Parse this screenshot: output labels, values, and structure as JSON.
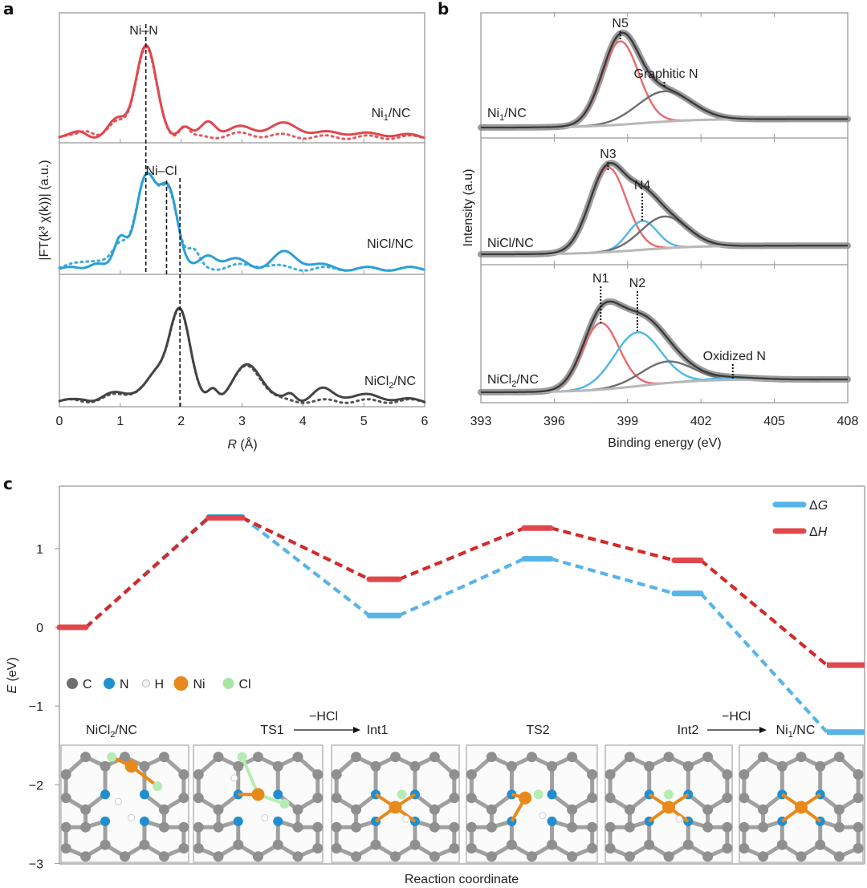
{
  "figure": {
    "panel_labels": [
      "a",
      "b",
      "c"
    ]
  },
  "chart_data": [
    {
      "id": "a",
      "type": "line",
      "title": "",
      "xlabel_italic": "R",
      "xlabel_rest": " (Å)",
      "ylabel": "|FT(k³ χ(k))| (a.u.)",
      "xlim": [
        0,
        6
      ],
      "xticks": [
        "0",
        "1",
        "2",
        "3",
        "4",
        "5",
        "6"
      ],
      "grid": false,
      "line_style": {
        "solid": "experiment",
        "dotted": "fit"
      },
      "subplots": [
        {
          "name": "Ni1/NC",
          "label_main": "Ni",
          "label_sub": "1",
          "label_tail": "/NC",
          "color": "#e0474c",
          "annotation": "Ni–N",
          "annotation_lines_R": [
            1.42
          ],
          "exp_peaks": [
            [
              0.35,
              0.06,
              0.12
            ],
            [
              0.95,
              0.18,
              0.14
            ],
            [
              1.42,
              1.0,
              0.17
            ],
            [
              2.05,
              0.12,
              0.1
            ],
            [
              2.45,
              0.16,
              0.12
            ],
            [
              2.95,
              0.1,
              0.25
            ],
            [
              3.7,
              0.14,
              0.28
            ],
            [
              4.6,
              0.05,
              0.3
            ],
            [
              5.4,
              0.03,
              0.3
            ]
          ],
          "fit_peaks": [
            [
              0.45,
              0.08,
              0.12
            ],
            [
              0.95,
              0.15,
              0.14
            ],
            [
              1.42,
              0.98,
              0.17
            ],
            [
              2.05,
              0.13,
              0.08
            ],
            [
              2.9,
              0.03,
              0.2
            ],
            [
              3.5,
              0.02,
              0.3
            ]
          ]
        },
        {
          "name": "NiCl/NC",
          "label_main": "NiCl/NC",
          "label_sub": "",
          "label_tail": "",
          "color": "#2a9fd8",
          "annotation": "Ni–Cl",
          "annotation_lines_R": [
            1.42,
            1.78,
            1.98
          ],
          "exp_peaks": [
            [
              0.6,
              0.07,
              0.12
            ],
            [
              1.0,
              0.3,
              0.1
            ],
            [
              1.42,
              0.98,
              0.17
            ],
            [
              1.8,
              0.82,
              0.15
            ],
            [
              2.45,
              0.13,
              0.13
            ],
            [
              2.85,
              0.1,
              0.2
            ],
            [
              3.7,
              0.17,
              0.2
            ],
            [
              4.2,
              0.04,
              0.2
            ]
          ],
          "fit_peaks": [
            [
              0.55,
              0.1,
              0.25
            ],
            [
              1.0,
              0.22,
              0.12
            ],
            [
              1.42,
              0.98,
              0.17
            ],
            [
              1.8,
              0.8,
              0.15
            ],
            [
              2.2,
              0.18,
              0.1
            ],
            [
              2.9,
              0.03,
              0.2
            ],
            [
              3.4,
              0.04,
              0.2
            ]
          ]
        },
        {
          "name": "NiCl2/NC",
          "label_main": "NiCl",
          "label_sub": "2",
          "label_tail": "/NC",
          "color": "#444444",
          "annotation": "",
          "annotation_lines_R": [
            1.98
          ],
          "exp_peaks": [
            [
              0.4,
              0.02,
              0.1
            ],
            [
              0.9,
              0.07,
              0.2
            ],
            [
              1.35,
              0.1,
              0.2
            ],
            [
              1.6,
              0.2,
              0.15
            ],
            [
              1.97,
              1.0,
              0.17
            ],
            [
              2.52,
              0.13,
              0.08
            ],
            [
              3.05,
              0.3,
              0.22
            ],
            [
              3.25,
              0.12,
              0.2
            ],
            [
              3.8,
              0.07,
              0.08
            ],
            [
              4.3,
              0.1,
              0.15
            ],
            [
              4.9,
              0.06,
              0.45
            ]
          ],
          "fit_peaks": [
            [
              0.9,
              0.05,
              0.2
            ],
            [
              1.35,
              0.1,
              0.2
            ],
            [
              1.6,
              0.2,
              0.15
            ],
            [
              1.97,
              0.99,
              0.17
            ],
            [
              2.52,
              0.13,
              0.08
            ],
            [
              3.05,
              0.3,
              0.22
            ],
            [
              3.25,
              0.1,
              0.2
            ]
          ]
        }
      ]
    },
    {
      "id": "b",
      "type": "line",
      "title": "",
      "xlabel": "Binding energy (eV)",
      "ylabel": "Intensity (a.u)",
      "xlim": [
        393,
        408
      ],
      "xticks": [
        "393",
        "396",
        "399",
        "402",
        "405",
        "408"
      ],
      "grid": false,
      "subplots": [
        {
          "name": "Ni1/NC",
          "label_main": "Ni",
          "label_sub": "1",
          "label_tail": "/NC",
          "baseline": [
            0.0,
            0.09
          ],
          "components": [
            {
              "name": "N5",
              "color": "#e8696e",
              "center": 398.7,
              "height": 0.88,
              "sigma": 0.75
            },
            {
              "name": "Graphitic N",
              "color": "#6e6e6e",
              "center": 400.5,
              "height": 0.32,
              "sigma": 1.1
            }
          ],
          "annotations": [
            {
              "text": "N5",
              "x": 398.7
            },
            {
              "text": "Graphitic N",
              "x": 400.5
            }
          ]
        },
        {
          "name": "NiCl/NC",
          "label_main": "NiCl/NC",
          "label_sub": "",
          "label_tail": "",
          "baseline": [
            0.0,
            0.09
          ],
          "components": [
            {
              "name": "N3",
              "color": "#e8696e",
              "center": 398.2,
              "height": 0.88,
              "sigma": 0.75
            },
            {
              "name": "N4",
              "color": "#4db8e8",
              "center": 399.6,
              "height": 0.3,
              "sigma": 0.6
            },
            {
              "name": "comp-gray",
              "color": "#6e6e6e",
              "center": 400.5,
              "height": 0.33,
              "sigma": 0.95
            }
          ],
          "annotations": [
            {
              "text": "N3",
              "x": 398.2
            },
            {
              "text": "N4",
              "x": 399.6
            }
          ]
        },
        {
          "name": "NiCl2/NC",
          "label_main": "NiCl",
          "label_sub": "2",
          "label_tail": "/NC",
          "baseline": [
            0.0,
            0.12
          ],
          "components": [
            {
              "name": "N1",
              "color": "#e8696e",
              "center": 397.9,
              "height": 0.62,
              "sigma": 0.75
            },
            {
              "name": "N2",
              "color": "#4db8e8",
              "center": 399.4,
              "height": 0.5,
              "sigma": 0.95
            },
            {
              "name": "comp-gray",
              "color": "#6e6e6e",
              "center": 400.6,
              "height": 0.2,
              "sigma": 1.05
            },
            {
              "name": "Oxidized N",
              "color": "#4db8e8",
              "center": 403.3,
              "height": 0.02,
              "sigma": 1.0
            }
          ],
          "annotations": [
            {
              "text": "N1",
              "x": 397.9
            },
            {
              "text": "N2",
              "x": 399.4
            },
            {
              "text": "Oxidized N",
              "x": 403.3
            }
          ]
        }
      ]
    },
    {
      "id": "c",
      "type": "line",
      "title": "",
      "xlabel": "Reaction coordinate",
      "ylabel_italic": "E",
      "ylabel_rest": " (eV)",
      "ylim": [
        -3,
        1.65
      ],
      "yticks": [
        1,
        0,
        -1,
        -2,
        -3
      ],
      "ytick_labels": [
        "1",
        "0",
        "−1",
        "−2",
        "−3"
      ],
      "grid": false,
      "legend_position": "top-right",
      "states": [
        "NiCl2/NC",
        "TS1",
        "Int1",
        "TS2",
        "Int2",
        "Ni1/NC"
      ],
      "series": [
        {
          "name": "ΔG",
          "symbol": "Δ",
          "italic": "G",
          "color": "#56b4e9",
          "dash_color": "#56b4e9",
          "values": [
            0.0,
            1.4,
            0.15,
            0.87,
            0.43,
            -1.33
          ]
        },
        {
          "name": "ΔH",
          "symbol": "Δ",
          "italic": "H",
          "color": "#e0474c",
          "dash_color": "#d42a2a",
          "values": [
            0.0,
            1.39,
            0.61,
            1.26,
            0.85,
            -0.48
          ]
        }
      ],
      "atom_legend": [
        {
          "symbol": "C",
          "color": "#6e6e6e"
        },
        {
          "symbol": "N",
          "color": "#1f8fcf"
        },
        {
          "symbol": "H",
          "color": "#f2f2f2"
        },
        {
          "symbol": "Ni",
          "color": "#e8891c"
        },
        {
          "symbol": "Cl",
          "color": "#a8e6a8"
        }
      ],
      "step_labels": {
        "s1": {
          "main": "NiCl",
          "sub": "2",
          "tail": "/NC"
        },
        "s2_from": "TS1",
        "s2_over": "−HCl",
        "s2_to": "Int1",
        "s3": "TS2",
        "s4_from": "Int2",
        "s4_over": "−HCl",
        "s4_to_main": "Ni",
        "s4_to_sub": "1",
        "s4_to_tail": "/NC"
      },
      "structures": [
        "NiCl2/NC",
        "TS1",
        "Int1",
        "TS2",
        "Int2",
        "Ni1/NC"
      ]
    }
  ]
}
